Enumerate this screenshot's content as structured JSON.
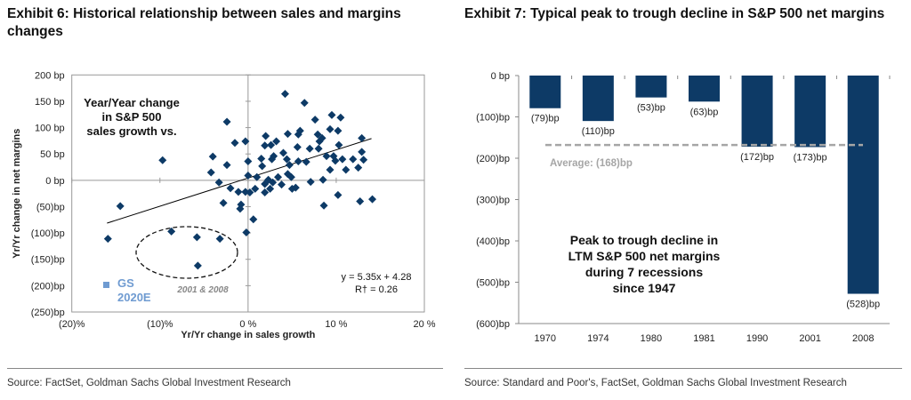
{
  "left": {
    "title": "Exhibit 6: Historical relationship between sales and margins changes",
    "source": "Source: FactSet, Goldman Sachs Global Investment Research"
  },
  "right": {
    "title": "Exhibit 7: Typical peak to trough decline in S&P 500 net margins",
    "source": "Source: Standard and Poor's, FactSet, Goldman Sachs Global Investment Research"
  },
  "chart_data": [
    {
      "type": "scatter",
      "xlabel": "Yr/Yr change in sales growth",
      "ylabel": "Yr/Yr change in net margins",
      "xlim": [
        -20,
        20
      ],
      "ylim": [
        -250,
        200
      ],
      "x_ticks": [
        "(20)%",
        "(10)%",
        "0 %",
        "10 %",
        "20 %"
      ],
      "y_ticks": [
        "200 bp",
        "150 bp",
        "100 bp",
        "50 bp",
        "0 bp",
        "(50)bp",
        "(100)bp",
        "(150)bp",
        "(200)bp",
        "(250)bp"
      ],
      "annotation": "Year/Year change in S&P 500 sales growth vs.",
      "annotation_lines": [
        "Year/Year change",
        "in S&P 500",
        "sales growth vs."
      ],
      "ellipse_label": "2001 & 2008",
      "legend": [
        "GS",
        "2020E"
      ],
      "legend_color": "#6f9bd1",
      "equation": "y = 5.35x + 4.28",
      "r2": "R† = 0.26",
      "trendline": {
        "slope": 5.35,
        "intercept": 4.28,
        "x_range": [
          -16,
          14
        ]
      },
      "point_color": "#0d3a66",
      "points": [
        [
          -15.9,
          -111
        ],
        [
          -14.5,
          -49
        ],
        [
          -9.7,
          38
        ],
        [
          -8.7,
          -97
        ],
        [
          -5.8,
          -108
        ],
        [
          -3.2,
          -111
        ],
        [
          -5.7,
          -162
        ],
        [
          -2.4,
          111
        ],
        [
          -1.5,
          71
        ],
        [
          -0.3,
          74
        ],
        [
          -4.0,
          45
        ],
        [
          -2.4,
          29
        ],
        [
          -4.2,
          15
        ],
        [
          -3.3,
          -4
        ],
        [
          -2.0,
          -15
        ],
        [
          -2.8,
          -43
        ],
        [
          -1.1,
          -22
        ],
        [
          -0.8,
          -46
        ],
        [
          -0.9,
          -54
        ],
        [
          -0.3,
          -22
        ],
        [
          0.2,
          -23
        ],
        [
          0,
          36
        ],
        [
          0,
          9
        ],
        [
          -0.2,
          -99
        ],
        [
          0.6,
          -74
        ],
        [
          1.0,
          6
        ],
        [
          0.8,
          -16
        ],
        [
          1.5,
          41
        ],
        [
          1.6,
          27
        ],
        [
          2.0,
          84
        ],
        [
          1.9,
          66
        ],
        [
          1.9,
          -7
        ],
        [
          1.9,
          -23
        ],
        [
          2.3,
          1
        ],
        [
          2.5,
          -16
        ],
        [
          2.8,
          -4
        ],
        [
          2.6,
          67
        ],
        [
          3.2,
          74
        ],
        [
          2.9,
          46
        ],
        [
          2.7,
          40
        ],
        [
          3.4,
          6
        ],
        [
          3.8,
          -8
        ],
        [
          4.2,
          164
        ],
        [
          4.0,
          52
        ],
        [
          4.5,
          88
        ],
        [
          4.4,
          40
        ],
        [
          4.7,
          29
        ],
        [
          4.5,
          12
        ],
        [
          4.9,
          6
        ],
        [
          5.0,
          -16
        ],
        [
          5.4,
          -14
        ],
        [
          5.6,
          63
        ],
        [
          5.7,
          87
        ],
        [
          5.9,
          94
        ],
        [
          5.7,
          36
        ],
        [
          6.4,
          147
        ],
        [
          6.6,
          35
        ],
        [
          7.0,
          60
        ],
        [
          7.1,
          -3
        ],
        [
          7.6,
          115
        ],
        [
          7.9,
          87
        ],
        [
          8.1,
          74
        ],
        [
          8.4,
          80
        ],
        [
          8.0,
          60
        ],
        [
          8.5,
          1
        ],
        [
          8.6,
          -48
        ],
        [
          8.9,
          46
        ],
        [
          9.3,
          20
        ],
        [
          9.3,
          97
        ],
        [
          9.5,
          124
        ],
        [
          10.2,
          94
        ],
        [
          9.9,
          37
        ],
        [
          10.3,
          67
        ],
        [
          10.5,
          119
        ],
        [
          10.7,
          40
        ],
        [
          11.1,
          20
        ],
        [
          10.2,
          -28
        ],
        [
          11.9,
          40
        ],
        [
          12.5,
          24
        ],
        [
          12.9,
          80
        ],
        [
          12.9,
          54
        ],
        [
          13.1,
          39
        ],
        [
          12.7,
          -40
        ],
        [
          14.1,
          -36
        ],
        [
          9.7,
          46
        ]
      ]
    },
    {
      "type": "bar",
      "categories": [
        "1970",
        "1974",
        "1980",
        "1981",
        "1990",
        "2001",
        "2008"
      ],
      "values": [
        -79,
        -110,
        -53,
        -63,
        -172,
        -173,
        -528
      ],
      "data_labels": [
        "(79)bp",
        "(110)bp",
        "(53)bp",
        "(63)bp",
        "(172)bp",
        "(173)bp",
        "(528)bp"
      ],
      "ylim": [
        -600,
        0
      ],
      "y_ticks": [
        "0 bp",
        "(100)bp",
        "(200)bp",
        "(300)bp",
        "(400)bp",
        "(500)bp",
        "(600)bp"
      ],
      "average": -168,
      "average_label": "Average: (168)bp",
      "annotation_lines": [
        "Peak to trough decline in",
        "LTM S&P 500 net margins",
        "during 7 recessions",
        "since 1947"
      ],
      "bar_color": "#0d3a66",
      "average_color": "#a6a6a6"
    }
  ]
}
